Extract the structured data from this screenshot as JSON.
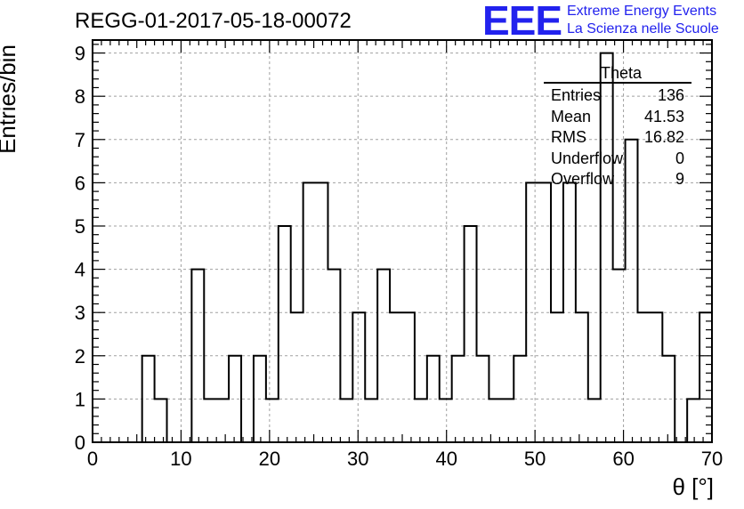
{
  "run_title": "REGG-01-2017-05-18-00072",
  "logo": {
    "text": "EEE",
    "line1": "Extreme Energy Events",
    "line2": "La Scienza nelle Scuole",
    "color": "#2222ee"
  },
  "stats_box": {
    "title": "Theta",
    "rows": [
      {
        "label": "Entries",
        "value": "136"
      },
      {
        "label": "Mean",
        "value": "41.53"
      },
      {
        "label": "RMS",
        "value": "16.82"
      },
      {
        "label": "Underflow",
        "value": "0"
      },
      {
        "label": "Overflow",
        "value": "9"
      }
    ]
  },
  "chart_data": {
    "type": "histogram",
    "title": "REGG-01-2017-05-18-00072",
    "xlabel": "θ [°]",
    "ylabel": "Entries/bin",
    "xlim": [
      0,
      70
    ],
    "ylim": [
      0,
      9.3
    ],
    "bin_width": 1.4,
    "grid": true,
    "bin_edges": [
      0,
      1.4,
      2.8,
      4.2,
      5.6,
      7,
      8.4,
      9.8,
      11.2,
      12.6,
      14,
      15.4,
      16.8,
      18.2,
      19.6,
      21,
      22.4,
      23.8,
      25.2,
      26.6,
      28,
      29.4,
      30.8,
      32.2,
      33.6,
      35,
      36.4,
      37.8,
      39.2,
      40.6,
      42,
      43.4,
      44.8,
      46.2,
      47.6,
      49,
      50.4,
      51.8,
      53.2,
      54.6,
      56,
      57.4,
      58.8,
      60.2,
      61.6,
      63,
      64.4,
      65.8,
      67.2,
      68.6,
      70
    ],
    "values": [
      0,
      0,
      0,
      0,
      2,
      1,
      0,
      0,
      4,
      1,
      1,
      2,
      0,
      2,
      1,
      5,
      3,
      6,
      6,
      4,
      1,
      3,
      1,
      4,
      3,
      3,
      1,
      2,
      1,
      2,
      5,
      2,
      1,
      1,
      2,
      6,
      6,
      3,
      6,
      3,
      1,
      9,
      4,
      7,
      3,
      3,
      2,
      0,
      1,
      3
    ],
    "xticks": [
      0,
      10,
      20,
      30,
      40,
      50,
      60,
      70
    ],
    "yticks": [
      0,
      1,
      2,
      3,
      4,
      5,
      6,
      7,
      8,
      9
    ],
    "line_color": "#000000",
    "grid_color": "#a0a0a0"
  }
}
